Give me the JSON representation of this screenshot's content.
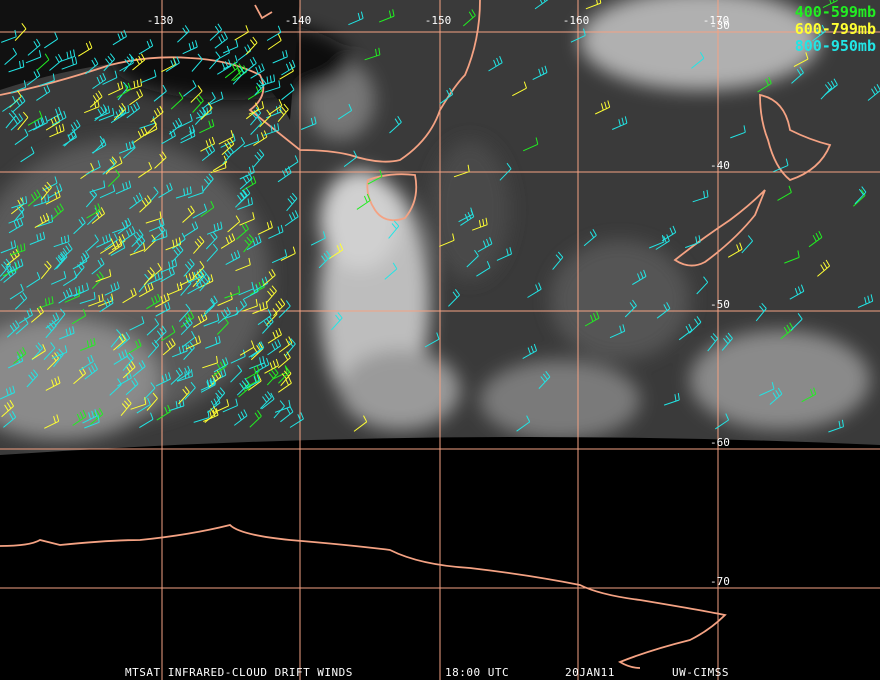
{
  "map": {
    "longitude_labels": [
      "-130",
      "-140",
      "-150",
      "-160",
      "-170"
    ],
    "latitude_labels": [
      "-30",
      "-40",
      "-50",
      "-60",
      "-70"
    ],
    "legend": [
      "400-599mb",
      "600-799mb",
      "800-950mb"
    ],
    "footer": [
      "MTSAT INFRARED-CLOUD DRIFT WINDS",
      "18:00 UTC",
      "20JAN11",
      "UW-CIMSS"
    ]
  }
}
